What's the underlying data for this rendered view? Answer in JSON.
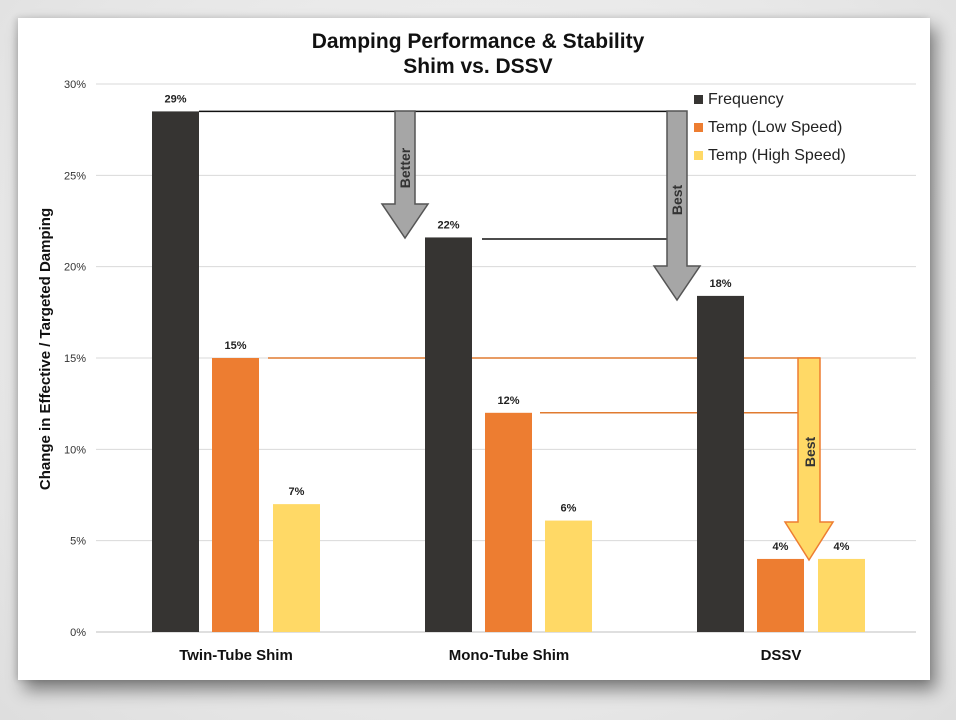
{
  "colors": {
    "frequency": "#363432",
    "temp_low": "#ed7d31",
    "temp_high": "#ffd966",
    "grid": "#d9d9d9",
    "connector_dark": "#111111",
    "connector_orange": "#e07b30",
    "arrow_gray": "#a6a6a6",
    "arrow_yellow": "#ffd966",
    "arrow_yellow_border": "#ed7d31"
  },
  "annotations": {
    "better": "Better",
    "best_gray": "Best",
    "best_yellow": "Best"
  },
  "chart_data": {
    "type": "bar",
    "title": "Damping Performance & Stability",
    "subtitle": "Shim vs. DSSV",
    "xlabel": "",
    "ylabel": "Change in Effective / Targeted Damping",
    "ylim": [
      0,
      30
    ],
    "yticks": [
      0,
      5,
      10,
      15,
      20,
      25,
      30
    ],
    "ytick_labels": [
      "0%",
      "5%",
      "10%",
      "15%",
      "20%",
      "25%",
      "30%"
    ],
    "grid": true,
    "legend_position": "top-right",
    "categories": [
      "Twin-Tube Shim",
      "Mono-Tube Shim",
      "DSSV"
    ],
    "series": [
      {
        "name": "Frequency",
        "values": [
          28.5,
          21.6,
          18.4
        ],
        "labels": [
          "29%",
          "22%",
          "18%"
        ]
      },
      {
        "name": "Temp (Low Speed)",
        "values": [
          15.0,
          12.0,
          4.0
        ],
        "labels": [
          "15%",
          "12%",
          "4%"
        ]
      },
      {
        "name": "Temp (High Speed)",
        "values": [
          7.0,
          6.1,
          4.0
        ],
        "labels": [
          "7%",
          "6%",
          "4%"
        ]
      }
    ]
  }
}
